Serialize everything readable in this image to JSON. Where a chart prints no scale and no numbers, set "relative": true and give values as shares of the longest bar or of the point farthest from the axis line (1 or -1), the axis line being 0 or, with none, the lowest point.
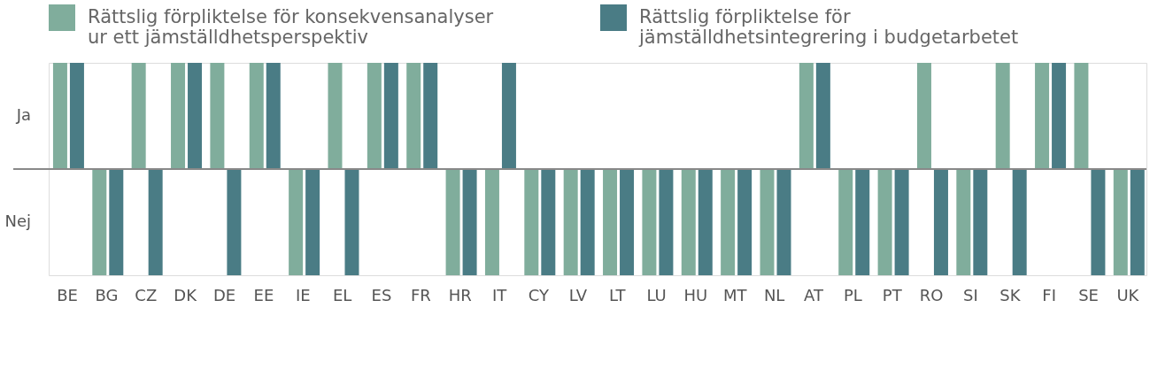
{
  "chart_data": {
    "type": "bar",
    "categories": [
      "BE",
      "BG",
      "CZ",
      "DK",
      "DE",
      "EE",
      "IE",
      "EL",
      "ES",
      "FR",
      "HR",
      "IT",
      "CY",
      "LV",
      "LT",
      "LU",
      "HU",
      "MT",
      "NL",
      "AT",
      "PL",
      "PT",
      "RO",
      "SI",
      "SK",
      "FI",
      "SE",
      "UK"
    ],
    "series": [
      {
        "name": "Rättslig förpliktelse för konsekvensanalyser ur ett jämställdhetsperspektiv",
        "color": "#80ad9c",
        "values": [
          1,
          -1,
          1,
          1,
          1,
          1,
          -1,
          1,
          1,
          1,
          -1,
          -1,
          -1,
          -1,
          -1,
          -1,
          -1,
          -1,
          -1,
          1,
          -1,
          -1,
          1,
          -1,
          1,
          1,
          1,
          -1
        ]
      },
      {
        "name": "Rättslig förpliktelse för jämställdhetsintegrering i budgetarbetet",
        "color": "#4a7c85",
        "values": [
          1,
          -1,
          -1,
          1,
          -1,
          1,
          -1,
          -1,
          1,
          1,
          -1,
          1,
          -1,
          -1,
          -1,
          -1,
          -1,
          -1,
          -1,
          1,
          -1,
          -1,
          -1,
          -1,
          -1,
          1,
          -1,
          -1
        ]
      }
    ],
    "relative": true,
    "annotations": [
      "Ja",
      "Nej"
    ],
    "grid": false,
    "legend": "top"
  }
}
